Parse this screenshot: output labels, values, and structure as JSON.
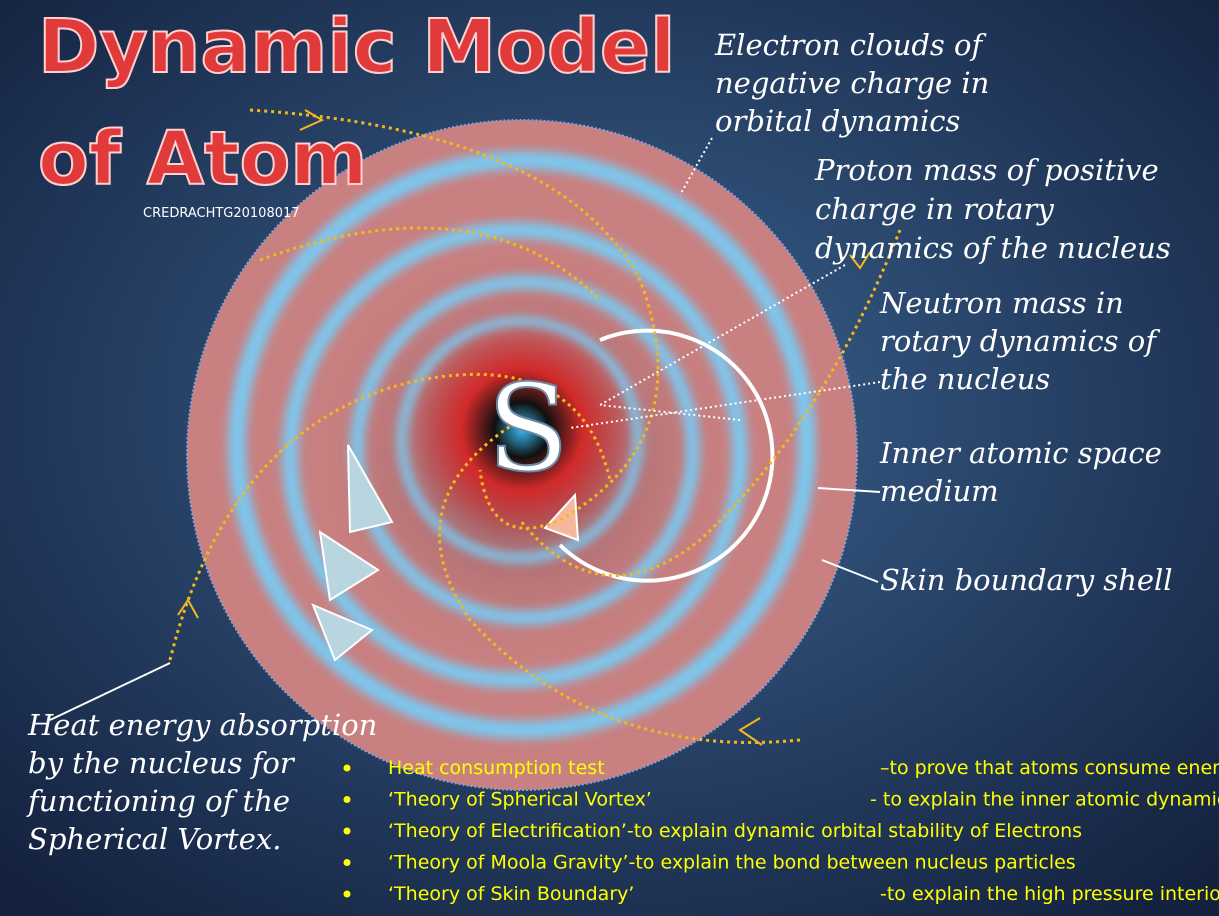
{
  "title_lines": [
    "Dynamic Model",
    "of Atom"
  ],
  "credit": "CREDRACHTG20108017",
  "nucleus_letter": "S",
  "labels": {
    "electron": [
      "Electron clouds of",
      "negative charge in",
      "orbital dynamics"
    ],
    "proton": [
      "Proton mass of positive",
      "charge in rotary",
      "dynamics of the nucleus"
    ],
    "neutron": [
      "Neutron mass in",
      "rotary dynamics of",
      "the nucleus"
    ],
    "inner": [
      "Inner atomic space",
      "medium"
    ],
    "skin": [
      "Skin boundary shell"
    ],
    "heat": [
      "Heat energy absorption",
      "by the nucleus for",
      "functioning of the",
      "Spherical Vortex."
    ]
  },
  "bullets": [
    [
      "Heat consumption test",
      "–to prove that atoms consume energy"
    ],
    [
      "‘Theory of Spherical Vortex’",
      "- to explain the inner atomic dynamics"
    ],
    [
      "‘Theory of Electrification’-to explain dynamic orbital stability  of Electrons"
    ],
    [
      "‘Theory of Moola Gravity’-to explain the bond between nucleus  particles"
    ],
    [
      "‘Theory of Skin Boundary’",
      "-to explain  the high pressure  interior  space"
    ]
  ]
}
